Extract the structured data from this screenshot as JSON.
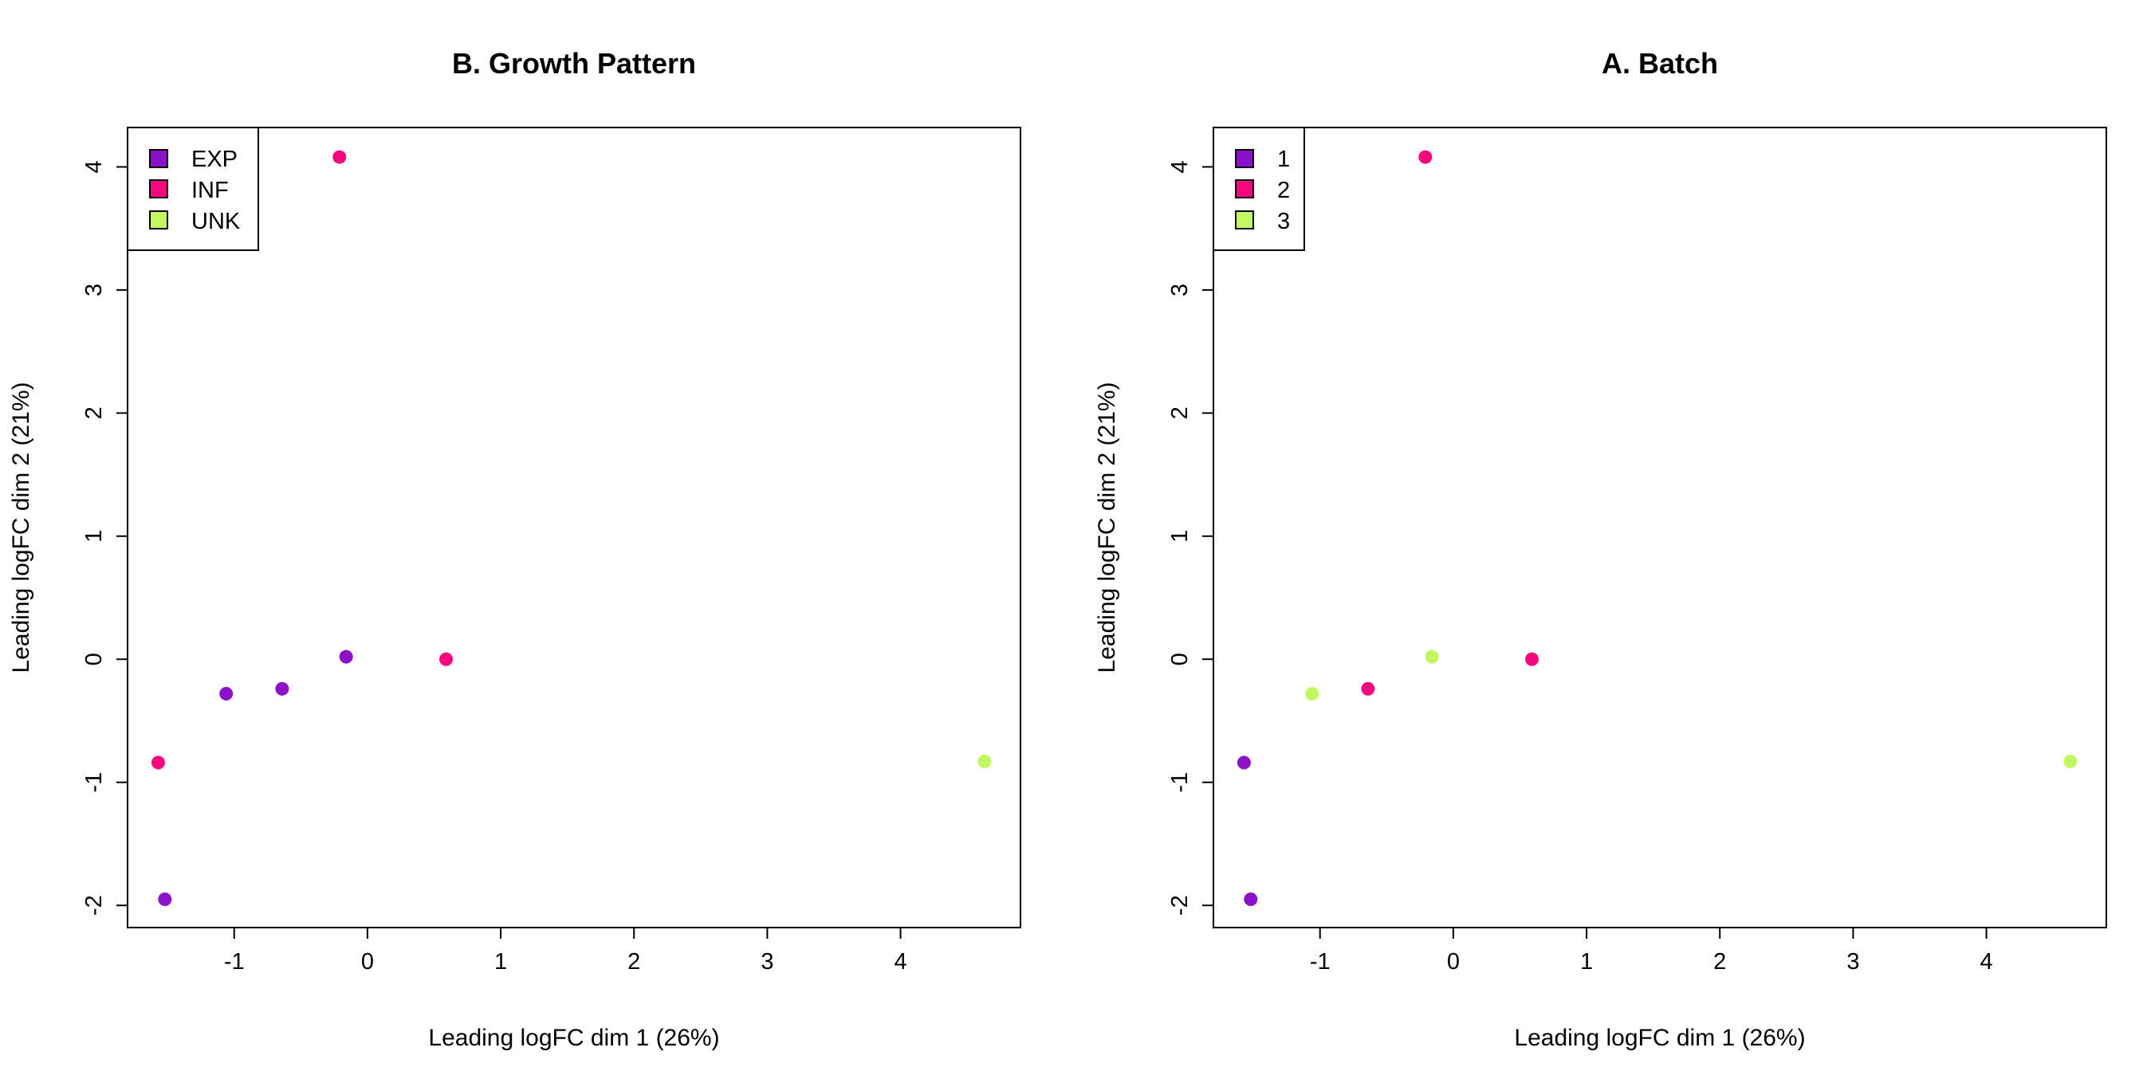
{
  "chart_data": [
    {
      "type": "scatter",
      "title": "B. Growth Pattern",
      "xlabel": "Leading logFC dim 1 (26%)",
      "ylabel": "Leading logFC dim 2 (21%)",
      "xlim": [
        -1.8,
        4.9
      ],
      "ylim": [
        -2.18,
        4.32
      ],
      "xticks": [
        "-1",
        "0",
        "1",
        "2",
        "3",
        "4"
      ],
      "yticks": [
        "-2",
        "-1",
        "0",
        "1",
        "2",
        "3",
        "4"
      ],
      "grid": false,
      "legend_position": "top-left",
      "series": [
        {
          "name": "EXP",
          "color": "#8B12C9",
          "points": [
            [
              -1.52,
              -1.95
            ],
            [
              -1.06,
              -0.28
            ],
            [
              -0.64,
              -0.24
            ],
            [
              -0.16,
              0.02
            ]
          ]
        },
        {
          "name": "INF",
          "color": "#F5087F",
          "points": [
            [
              -1.57,
              -0.84
            ],
            [
              -0.21,
              4.08
            ],
            [
              0.59,
              0.0
            ]
          ]
        },
        {
          "name": "UNK",
          "color": "#C3F75F",
          "points": [
            [
              4.63,
              -0.83
            ]
          ]
        }
      ]
    },
    {
      "type": "scatter",
      "title": "A. Batch",
      "xlabel": "Leading logFC dim 1 (26%)",
      "ylabel": "Leading logFC dim 2 (21%)",
      "xlim": [
        -1.8,
        4.9
      ],
      "ylim": [
        -2.18,
        4.32
      ],
      "xticks": [
        "-1",
        "0",
        "1",
        "2",
        "3",
        "4"
      ],
      "yticks": [
        "-2",
        "-1",
        "0",
        "1",
        "2",
        "3",
        "4"
      ],
      "grid": false,
      "legend_position": "top-left",
      "series": [
        {
          "name": "1",
          "color": "#8B12C9",
          "points": [
            [
              -1.57,
              -0.84
            ],
            [
              -1.52,
              -1.95
            ]
          ]
        },
        {
          "name": "2",
          "color": "#F5087F",
          "points": [
            [
              -0.64,
              -0.24
            ],
            [
              -0.21,
              4.08
            ],
            [
              0.59,
              0.0
            ]
          ]
        },
        {
          "name": "3",
          "color": "#C3F75F",
          "points": [
            [
              -1.06,
              -0.28
            ],
            [
              -0.16,
              0.02
            ],
            [
              4.63,
              -0.83
            ]
          ]
        }
      ]
    }
  ]
}
